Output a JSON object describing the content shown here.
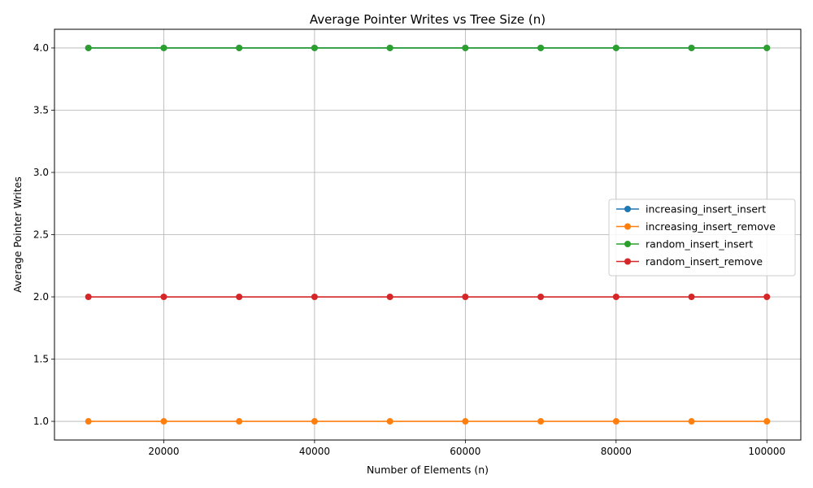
{
  "chart_data": {
    "type": "line",
    "title": "Average Pointer Writes vs Tree Size (n)",
    "xlabel": "Number of Elements (n)",
    "ylabel": "Average Pointer Writes",
    "x": [
      10000,
      20000,
      30000,
      40000,
      50000,
      60000,
      70000,
      80000,
      90000,
      100000
    ],
    "xlim": [
      5500,
      104500
    ],
    "ylim": [
      0.85,
      4.15
    ],
    "xticks": [
      20000,
      40000,
      60000,
      80000,
      100000
    ],
    "xtick_labels": [
      "20000",
      "40000",
      "60000",
      "80000",
      "100000"
    ],
    "yticks": [
      1.0,
      1.5,
      2.0,
      2.5,
      3.0,
      3.5,
      4.0
    ],
    "ytick_labels": [
      "1.0",
      "1.5",
      "2.0",
      "2.5",
      "3.0",
      "3.5",
      "4.0"
    ],
    "grid": true,
    "legend_position": "center-right",
    "series": [
      {
        "name": "increasing_insert_insert",
        "color": "#1f77b4",
        "values": [
          4,
          4,
          4,
          4,
          4,
          4,
          4,
          4,
          4,
          4
        ]
      },
      {
        "name": "increasing_insert_remove",
        "color": "#ff7f0e",
        "values": [
          1,
          1,
          1,
          1,
          1,
          1,
          1,
          1,
          1,
          1
        ]
      },
      {
        "name": "random_insert_insert",
        "color": "#2ca02c",
        "values": [
          4,
          4,
          4,
          4,
          4,
          4,
          4,
          4,
          4,
          4
        ]
      },
      {
        "name": "random_insert_remove",
        "color": "#d62728",
        "values": [
          2,
          2,
          2,
          2,
          2,
          2,
          2,
          2,
          2,
          2
        ]
      }
    ]
  }
}
